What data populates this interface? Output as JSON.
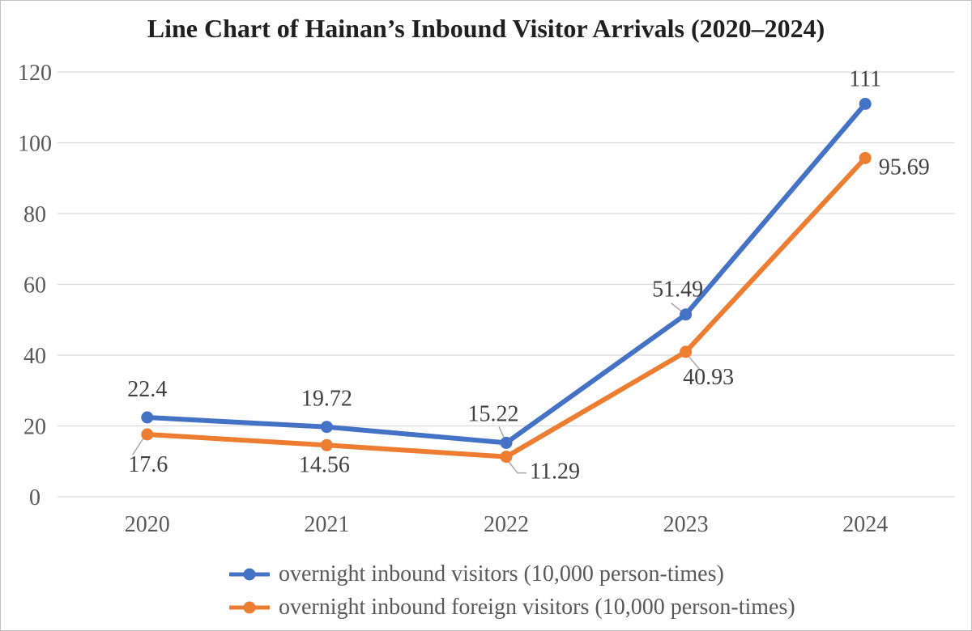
{
  "chart_data": {
    "type": "line",
    "title": "Line Chart of Hainan’s Inbound Visitor Arrivals (2020–2024)",
    "categories": [
      "2020",
      "2021",
      "2022",
      "2023",
      "2024"
    ],
    "series": [
      {
        "name": "overnight inbound visitors (10,000 person-times)",
        "color": "#4472C4",
        "values": [
          22.4,
          19.72,
          15.22,
          51.49,
          111
        ],
        "data_labels": [
          "22.4",
          "19.72",
          "15.22",
          "51.49",
          "111"
        ]
      },
      {
        "name": "overnight inbound foreign visitors (10,000 person-times)",
        "color": "#ED7D31",
        "values": [
          17.6,
          14.56,
          11.29,
          40.93,
          95.69
        ],
        "data_labels": [
          "17.6",
          "14.56",
          "11.29",
          "40.93",
          "95.69"
        ]
      }
    ],
    "y_axis": {
      "min": 0,
      "max": 120,
      "step": 20,
      "ticks": [
        "0",
        "20",
        "40",
        "60",
        "80",
        "100",
        "120"
      ]
    },
    "x_axis": {
      "labels": [
        "2020",
        "2021",
        "2022",
        "2023",
        "2024"
      ]
    },
    "grid": true,
    "legend_position": "bottom",
    "colors": {
      "gridline": "#D9D9D9",
      "axis_text": "#595959",
      "data_label_text": "#404040",
      "leader_line": "#A6A6A6",
      "title_text": "#1F1F1F"
    }
  }
}
